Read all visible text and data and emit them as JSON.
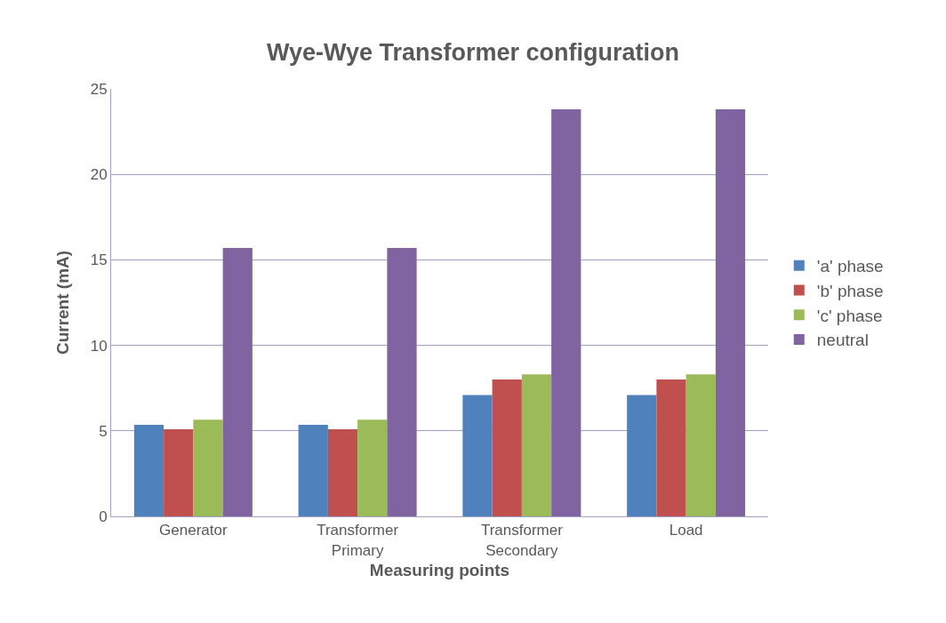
{
  "chart_data": {
    "type": "bar",
    "title": "Wye-Wye Transformer configuration",
    "xlabel": "Measuring points",
    "ylabel": "Current (mA)",
    "categories": [
      "Generator",
      "Transformer\nPrimary",
      "Transformer\nSecondary",
      "Load"
    ],
    "series": [
      {
        "name": "'a' phase",
        "color": "#4f81bd",
        "values": [
          5.35,
          5.35,
          7.1,
          7.1
        ]
      },
      {
        "name": "'b' phase",
        "color": "#c0504d",
        "values": [
          5.1,
          5.1,
          8.0,
          8.0
        ]
      },
      {
        "name": "'c' phase",
        "color": "#9bbb59",
        "values": [
          5.65,
          5.65,
          8.3,
          8.3
        ]
      },
      {
        "name": "neutral",
        "color": "#8064a2",
        "values": [
          15.7,
          15.7,
          23.8,
          23.8
        ]
      }
    ],
    "ylim": [
      0,
      25
    ],
    "yticks": [
      0,
      5,
      10,
      15,
      20,
      25
    ],
    "grid": "y",
    "legend": "right"
  }
}
